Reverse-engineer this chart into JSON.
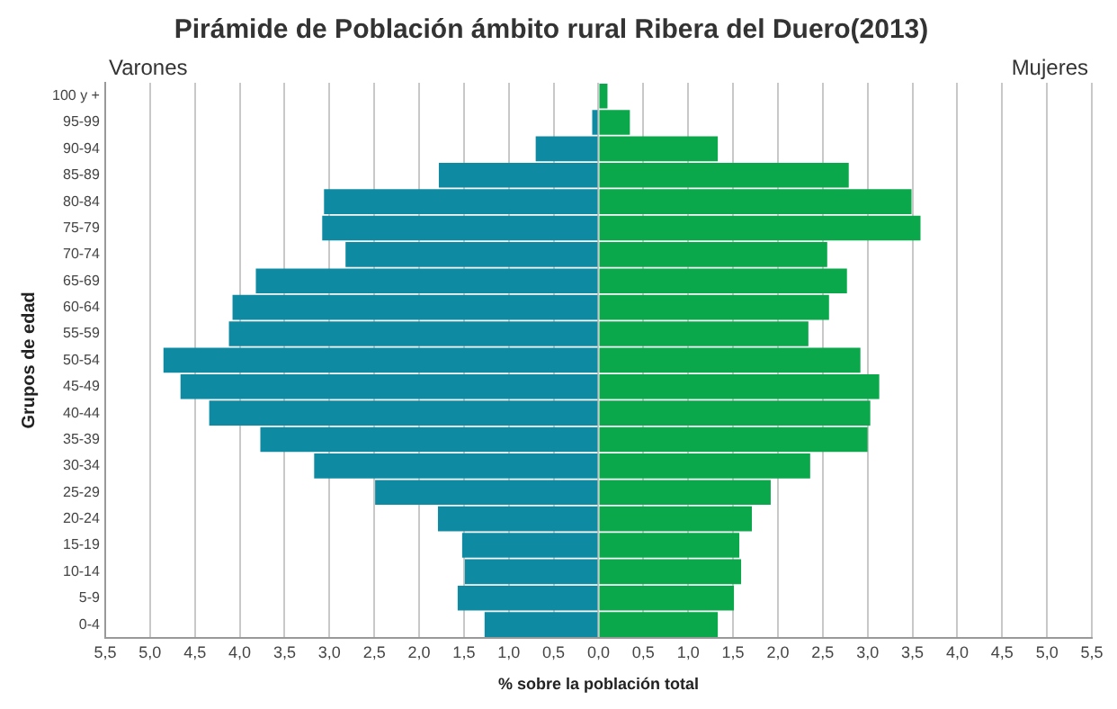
{
  "chart_data": {
    "type": "bar",
    "orientation": "horizontal",
    "stacked": true,
    "title": "Pirámide de Población ámbito rural Ribera del Duero(2013)",
    "xlabel": "% sobre la población total",
    "ylabel": "Grupos de edad",
    "annotations": [
      "Varones",
      "Mujeres"
    ],
    "categories": [
      "100 y +",
      "95-99",
      "90-94",
      "85-89",
      "80-84",
      "75-79",
      "70-74",
      "65-69",
      "60-64",
      "55-59",
      "50-54",
      "45-49",
      "40-44",
      "35-39",
      "30-34",
      "25-29",
      "20-24",
      "15-19",
      "10-14",
      "5-9",
      "0-4"
    ],
    "series": [
      {
        "color": "#0e8ba3",
        "values": [
          0,
          -0.07,
          -0.7,
          -1.78,
          -3.06,
          -3.08,
          -2.82,
          -3.82,
          -4.08,
          -4.12,
          -4.85,
          -4.66,
          -4.34,
          -3.77,
          -3.17,
          -2.49,
          -1.79,
          -1.52,
          -1.49,
          -1.57,
          -1.27
        ]
      },
      {
        "color": "#0aa84b",
        "values": [
          0.1,
          0.35,
          1.33,
          2.79,
          3.49,
          3.59,
          2.55,
          2.77,
          2.57,
          2.34,
          2.92,
          3.13,
          3.03,
          3.0,
          2.36,
          1.92,
          1.71,
          1.57,
          1.59,
          1.51,
          1.33
        ]
      }
    ],
    "xlim": [
      -5.5,
      5.5
    ],
    "xticks": [
      {
        "value": -5.5,
        "label": "5,5"
      },
      {
        "value": -5,
        "label": "5,0"
      },
      {
        "value": -4.5,
        "label": "4,5"
      },
      {
        "value": -4,
        "label": "4,0"
      },
      {
        "value": -3.5,
        "label": "3,5"
      },
      {
        "value": -3,
        "label": "3,0"
      },
      {
        "value": -2.5,
        "label": "2,5"
      },
      {
        "value": -2,
        "label": "2,0"
      },
      {
        "value": -1.5,
        "label": "1,5"
      },
      {
        "value": -1,
        "label": "1,0"
      },
      {
        "value": -0.5,
        "label": "0,5"
      },
      {
        "value": 0,
        "label": "0,0"
      },
      {
        "value": 0.5,
        "label": "0,5"
      },
      {
        "value": 1,
        "label": "1,0"
      },
      {
        "value": 1.5,
        "label": "1,5"
      },
      {
        "value": 2,
        "label": "2,0"
      },
      {
        "value": 2.5,
        "label": "2,5"
      },
      {
        "value": 3,
        "label": "3,0"
      },
      {
        "value": 3.5,
        "label": "3,5"
      },
      {
        "value": 4,
        "label": "4,0"
      },
      {
        "value": 4.5,
        "label": "4,5"
      },
      {
        "value": 5,
        "label": "5,0"
      },
      {
        "value": 5.5,
        "label": "5,5"
      }
    ],
    "grid": "x",
    "legend": false
  }
}
